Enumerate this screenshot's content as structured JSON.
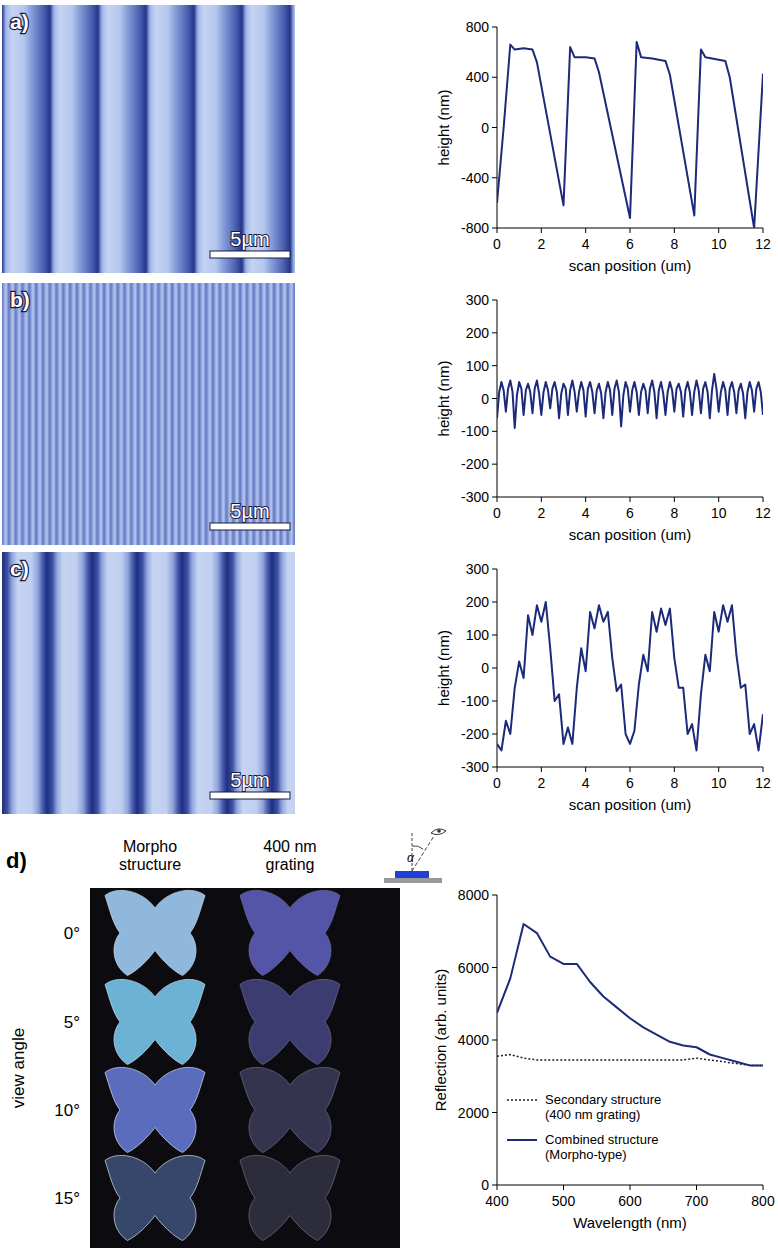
{
  "figure": {
    "images": [
      {
        "panel": "a)",
        "scale_bar": "5µm"
      },
      {
        "panel": "b)",
        "scale_bar": "5µm"
      },
      {
        "panel": "c)",
        "scale_bar": "5µm"
      }
    ],
    "photo": {
      "panel": "d)",
      "columns": [
        "Morpho structure",
        "400 nm grating"
      ],
      "rows": [
        "0°",
        "5°",
        "10°",
        "15°"
      ],
      "row_title": "view angle",
      "angle_symbol": "α"
    }
  },
  "chart_data": [
    {
      "type": "line",
      "x_label": "scan position (um)",
      "y_label": "height (nm)",
      "x": [
        0,
        0.3,
        0.6,
        0.8,
        1.2,
        1.6,
        1.8,
        3.0,
        3.3,
        3.5,
        4.0,
        4.4,
        4.6,
        6.0,
        6.3,
        6.5,
        7.0,
        7.6,
        7.8,
        8.9,
        9.2,
        9.4,
        10.0,
        10.3,
        10.5,
        11.6,
        12.0
      ],
      "series": [
        {
          "color": "#1c2a7a",
          "values": [
            -600,
            0,
            660,
            620,
            630,
            620,
            520,
            -620,
            640,
            560,
            560,
            550,
            440,
            -720,
            680,
            560,
            550,
            530,
            420,
            -700,
            620,
            560,
            540,
            530,
            400,
            -800,
            430
          ]
        }
      ],
      "xlim": [
        0,
        12
      ],
      "xticks": [
        0,
        2,
        4,
        6,
        8,
        10,
        12
      ],
      "ylim": [
        -800,
        800
      ],
      "yticks": [
        -800,
        -400,
        0,
        400,
        800
      ]
    },
    {
      "type": "line",
      "x_label": "scan position (um)",
      "y_label": "height (nm)",
      "x": [
        0,
        0.1,
        0.2,
        0.3,
        0.4,
        0.5,
        0.6,
        0.7,
        0.8,
        0.9,
        1,
        1.1,
        1.2,
        1.3,
        1.4,
        1.5,
        1.6,
        1.7,
        1.8,
        1.9,
        2,
        2.1,
        2.2,
        2.3,
        2.4,
        2.5,
        2.6,
        2.7,
        2.8,
        2.9,
        3,
        3.1,
        3.2,
        3.3,
        3.4,
        3.5,
        3.6,
        3.7,
        3.8,
        3.9,
        4,
        4.1,
        4.2,
        4.3,
        4.4,
        4.5,
        4.6,
        4.7,
        4.8,
        4.9,
        5,
        5.1,
        5.2,
        5.3,
        5.4,
        5.5,
        5.6,
        5.7,
        5.8,
        5.9,
        6,
        6.1,
        6.2,
        6.3,
        6.4,
        6.5,
        6.6,
        6.7,
        6.8,
        6.9,
        7,
        7.1,
        7.2,
        7.3,
        7.4,
        7.5,
        7.6,
        7.7,
        7.8,
        7.9,
        8,
        8.1,
        8.2,
        8.3,
        8.4,
        8.5,
        8.6,
        8.7,
        8.8,
        8.9,
        9,
        9.1,
        9.2,
        9.3,
        9.4,
        9.5,
        9.6,
        9.7,
        9.8,
        9.9,
        10,
        10.1,
        10.2,
        10.3,
        10.4,
        10.5,
        10.6,
        10.7,
        10.8,
        10.9,
        11,
        11.1,
        11.2,
        11.3,
        11.4,
        11.5,
        11.6,
        11.7,
        11.8,
        11.9,
        12
      ],
      "series": [
        {
          "color": "#1c2a7a",
          "values": [
            -60,
            20,
            50,
            25,
            -40,
            30,
            55,
            20,
            -90,
            10,
            50,
            30,
            -50,
            25,
            45,
            20,
            -45,
            30,
            55,
            15,
            -50,
            20,
            50,
            25,
            -30,
            30,
            50,
            20,
            -60,
            15,
            45,
            30,
            -50,
            25,
            55,
            20,
            -40,
            20,
            50,
            25,
            -55,
            30,
            50,
            20,
            -45,
            25,
            45,
            15,
            -60,
            20,
            50,
            25,
            -50,
            30,
            55,
            20,
            -85,
            10,
            50,
            30,
            -40,
            25,
            50,
            20,
            -50,
            20,
            45,
            25,
            -45,
            30,
            55,
            20,
            -60,
            25,
            50,
            15,
            -50,
            20,
            50,
            25,
            -40,
            30,
            45,
            20,
            -55,
            25,
            50,
            20,
            -50,
            20,
            55,
            25,
            -45,
            30,
            50,
            20,
            -60,
            25,
            75,
            30,
            -40,
            20,
            50,
            25,
            -50,
            30,
            50,
            20,
            -45,
            25,
            45,
            15,
            -60,
            20,
            50,
            25,
            -40,
            30,
            50,
            20,
            -50
          ]
        }
      ],
      "xlim": [
        0,
        12
      ],
      "xticks": [
        0,
        2,
        4,
        6,
        8,
        10,
        12
      ],
      "ylim": [
        -300,
        300
      ],
      "yticks": [
        -300,
        -200,
        -100,
        0,
        100,
        200,
        300
      ]
    },
    {
      "type": "line",
      "x_label": "scan position (um)",
      "y_label": "height (nm)",
      "x": [
        0,
        0.2,
        0.4,
        0.6,
        0.8,
        1.0,
        1.2,
        1.4,
        1.6,
        1.8,
        2.0,
        2.2,
        2.4,
        2.6,
        2.8,
        3.0,
        3.2,
        3.4,
        3.6,
        3.8,
        4.0,
        4.2,
        4.4,
        4.6,
        4.8,
        5.0,
        5.2,
        5.4,
        5.6,
        5.8,
        6.0,
        6.2,
        6.4,
        6.6,
        6.8,
        7.0,
        7.2,
        7.4,
        7.6,
        7.8,
        8.0,
        8.2,
        8.4,
        8.6,
        8.8,
        9.0,
        9.2,
        9.4,
        9.6,
        9.8,
        10.0,
        10.2,
        10.4,
        10.6,
        10.8,
        11.0,
        11.2,
        11.4,
        11.6,
        11.8,
        12.0
      ],
      "series": [
        {
          "color": "#1c2a7a",
          "values": [
            -230,
            -250,
            -160,
            -200,
            -60,
            20,
            -30,
            160,
            100,
            190,
            140,
            200,
            60,
            -100,
            -80,
            -230,
            -180,
            -230,
            -60,
            60,
            -10,
            170,
            120,
            190,
            140,
            170,
            30,
            -70,
            -50,
            -200,
            -230,
            -190,
            -50,
            40,
            -10,
            170,
            110,
            180,
            130,
            180,
            30,
            -60,
            -60,
            -200,
            -170,
            -250,
            -80,
            40,
            -10,
            170,
            110,
            190,
            140,
            190,
            40,
            -60,
            -50,
            -200,
            -170,
            -250,
            -140
          ]
        }
      ],
      "xlim": [
        0,
        12
      ],
      "xticks": [
        0,
        2,
        4,
        6,
        8,
        10,
        12
      ],
      "ylim": [
        -300,
        300
      ],
      "yticks": [
        -300,
        -200,
        -100,
        0,
        100,
        200,
        300
      ]
    },
    {
      "type": "line",
      "x_label": "Wavelength (nm)",
      "y_label": "Reflection (arb. units)",
      "x": [
        400,
        420,
        440,
        460,
        480,
        500,
        520,
        540,
        560,
        580,
        600,
        620,
        640,
        660,
        680,
        700,
        720,
        740,
        760,
        780,
        800
      ],
      "series": [
        {
          "name": "Secondary structure (400 nm grating)",
          "color": "#222222",
          "line_style": "dotted",
          "values": [
            3550,
            3600,
            3500,
            3450,
            3450,
            3450,
            3450,
            3450,
            3450,
            3450,
            3450,
            3450,
            3450,
            3450,
            3450,
            3500,
            3450,
            3400,
            3350,
            3300,
            3300
          ]
        },
        {
          "name": "Combined structure (Morpho-type)",
          "color": "#1c2a7a",
          "line_style": "solid",
          "values": [
            4750,
            5700,
            7200,
            6950,
            6300,
            6100,
            6100,
            5600,
            5200,
            4900,
            4600,
            4350,
            4150,
            3950,
            3850,
            3800,
            3600,
            3500,
            3400,
            3300,
            3300
          ]
        }
      ],
      "xlim": [
        400,
        800
      ],
      "xticks": [
        400,
        500,
        600,
        700,
        800
      ],
      "ylim": [
        0,
        8000
      ],
      "yticks": [
        0,
        2000,
        4000,
        6000,
        8000
      ],
      "legend": "lower left"
    }
  ]
}
